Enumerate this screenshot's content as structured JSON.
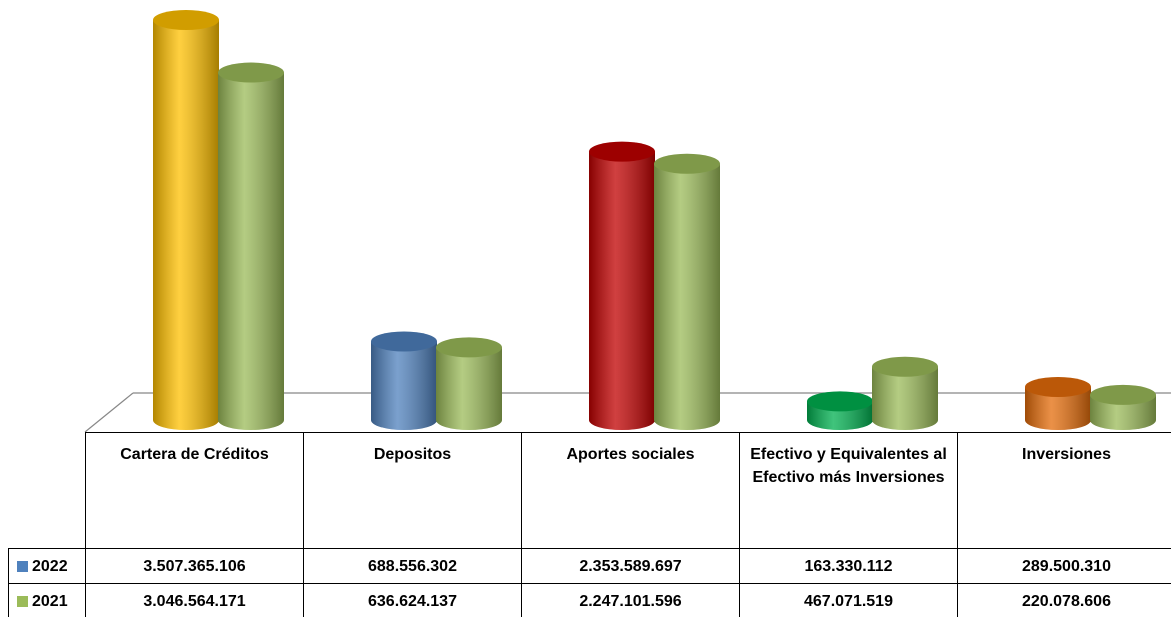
{
  "chart_data": {
    "type": "cylinder-bar",
    "categories": [
      "Cartera de Créditos",
      "Depositos",
      "Aportes sociales",
      "Efectivo y Equivalentes al Efectivo más Inversiones",
      "Inversiones"
    ],
    "series": [
      {
        "name": "2022",
        "color": "#4f81bd",
        "point_colors": [
          "#ffc000",
          "#4f81bd",
          "#c00000",
          "#00b050",
          "#e46c0a"
        ],
        "values": [
          3507365106,
          688556302,
          2353589697,
          163330112,
          289500310
        ],
        "value_labels": [
          "3.507.365.106",
          "688.556.302",
          "2.353.589.697",
          "163.330.112",
          "289.500.310"
        ]
      },
      {
        "name": "2021",
        "color": "#9bbb59",
        "values": [
          3046564171,
          636624137,
          2247101596,
          467071519,
          220078606
        ],
        "value_labels": [
          "3.046.564.171",
          "636.624.137",
          "2.247.101.596",
          "467.071.519",
          "220.078.606"
        ]
      }
    ]
  }
}
